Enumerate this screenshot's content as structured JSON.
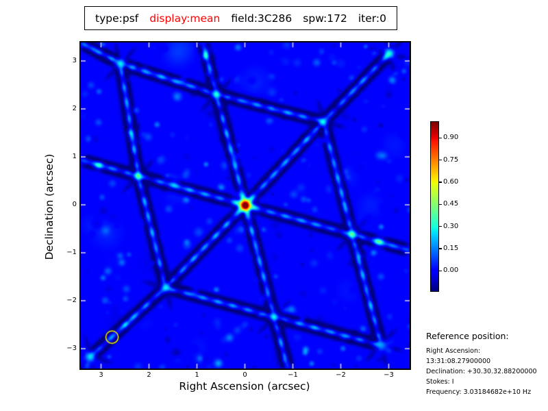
{
  "title": {
    "parts": [
      {
        "text": "type:psf",
        "color": "#000000"
      },
      {
        "text": "display:mean",
        "color": "#ff0000"
      },
      {
        "text": "field:3C286",
        "color": "#000000"
      },
      {
        "text": "spw:172",
        "color": "#000000"
      },
      {
        "text": "iter:0",
        "color": "#000000"
      }
    ]
  },
  "reference": {
    "heading": "Reference position:",
    "lines": [
      "Right Ascension: 13:31:08.27900000",
      "Declination: +30.30.32.88200000",
      "Stokes: I",
      "Frequency: 3.03184682e+10 Hz"
    ]
  },
  "chart_data": {
    "type": "heatmap",
    "colormap": "jet",
    "title": "type:psf display:mean field:3C286 spw:172 iter:0",
    "xlabel": "Right Ascension (arcsec)",
    "ylabel": "Declination (arcsec)",
    "xlim": [
      3.43,
      -3.43
    ],
    "ylim": [
      -3.4,
      3.4
    ],
    "x_tick_values": [
      3,
      2,
      1,
      0,
      -1,
      -2,
      -3
    ],
    "x_tick_labels": [
      "3",
      "2",
      "1",
      "0",
      "−1",
      "−2",
      "−3"
    ],
    "y_tick_values": [
      3,
      2,
      1,
      0,
      -1,
      -2,
      -3
    ],
    "y_tick_labels": [
      "3",
      "2",
      "1",
      "0",
      "−1",
      "−2",
      "−3"
    ],
    "value_range": [
      -0.137,
      1.008
    ],
    "colorbar_tick_values": [
      0.9,
      0.75,
      0.6,
      0.45,
      0.3,
      0.15,
      0.0
    ],
    "colorbar_tick_labels": [
      "0.90",
      "0.75",
      "0.60",
      "0.45",
      "0.30",
      "0.15",
      "0.00"
    ],
    "peak": {
      "x": 0.0,
      "y": 0.0,
      "value": 1.0
    },
    "beam_marker": {
      "x": 2.77,
      "y": -2.76,
      "radius_arcsec": 0.13,
      "color": "#e8e000"
    },
    "lobes": [
      [
        0,
        0,
        1.0,
        6.5
      ],
      [
        0,
        0,
        0.18,
        13
      ],
      [
        2.23,
        0.61,
        0.45,
        4.5
      ],
      [
        0.6,
        2.31,
        0.36,
        4.5
      ],
      [
        -1.63,
        1.74,
        0.3,
        4.5
      ],
      [
        -2.23,
        -0.61,
        0.4,
        4.5
      ],
      [
        -0.6,
        -2.33,
        0.32,
        4.5
      ],
      [
        1.66,
        -1.72,
        0.3,
        4.5
      ],
      [
        2.6,
        2.95,
        0.3,
        5
      ],
      [
        -2.83,
        -2.92,
        0.2,
        5.5
      ],
      [
        -3.0,
        3.16,
        0.33,
        5
      ],
      [
        3.23,
        -3.16,
        0.28,
        5
      ],
      [
        0.84,
        3.1,
        0.2,
        4
      ],
      [
        0.56,
        -3.3,
        0.18,
        4
      ],
      [
        -2.8,
        -0.77,
        0.22,
        6
      ],
      [
        3.05,
        0.82,
        0.22,
        4.5
      ]
    ],
    "trough_centers": [
      [
        0,
        0
      ],
      [
        2.23,
        0.61
      ],
      [
        0.6,
        2.31
      ],
      [
        -1.63,
        1.74
      ],
      [
        -2.23,
        -0.61
      ],
      [
        -0.6,
        -2.33
      ],
      [
        1.66,
        -1.72
      ],
      [
        2.6,
        2.95
      ],
      [
        -2.83,
        -2.92
      ],
      [
        -3.0,
        3.16
      ],
      [
        3.23,
        -3.16
      ]
    ],
    "trough_axes": [
      [
        0.965,
        0.264
      ],
      [
        0.252,
        0.968
      ],
      [
        -0.692,
        0.722
      ]
    ],
    "arms": [
      [
        0,
        0,
        2.23,
        0.61
      ],
      [
        0,
        0,
        0.6,
        2.31
      ],
      [
        0,
        0,
        -1.63,
        1.74
      ],
      [
        0,
        0,
        -2.23,
        -0.61
      ],
      [
        0,
        0,
        -0.6,
        -2.33
      ],
      [
        0,
        0,
        1.66,
        -1.72
      ],
      [
        2.23,
        0.61,
        2.6,
        2.95
      ],
      [
        0.6,
        2.31,
        2.6,
        2.95
      ],
      [
        0.6,
        2.31,
        -1.63,
        1.74
      ],
      [
        -1.63,
        1.74,
        -3.0,
        3.16
      ],
      [
        -1.63,
        1.74,
        -2.23,
        -0.61
      ],
      [
        1.66,
        -1.72,
        3.23,
        -3.16
      ],
      [
        -2.23,
        -0.61,
        -2.83,
        -2.92
      ],
      [
        -0.6,
        -2.33,
        -2.83,
        -2.92
      ],
      [
        -0.6,
        -2.33,
        1.66,
        -1.72
      ],
      [
        2.23,
        0.61,
        1.66,
        -1.72
      ],
      [
        2.23,
        0.61,
        3.45,
        0.95
      ],
      [
        -2.23,
        -0.61,
        -3.45,
        -0.95
      ],
      [
        0.6,
        2.31,
        0.9,
        3.45
      ],
      [
        -0.6,
        -2.33,
        -0.9,
        -3.45
      ],
      [
        2.6,
        2.95,
        3.45,
        3.4
      ]
    ],
    "speckle_seed": 11
  }
}
